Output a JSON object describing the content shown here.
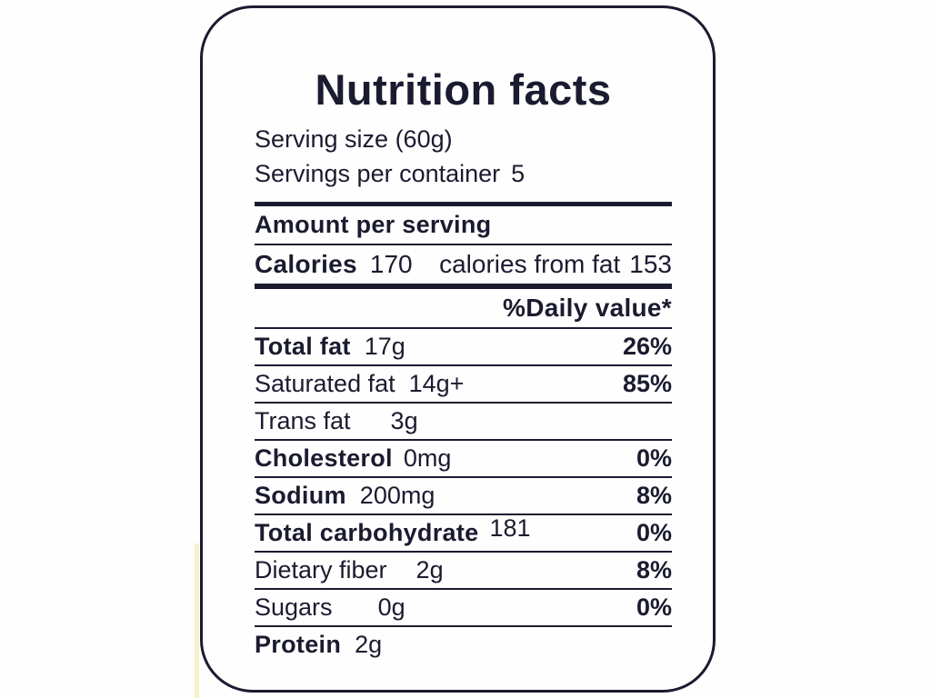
{
  "label": {
    "title": "Nutrition facts",
    "serving_size": "Serving size (60g)",
    "servings_per_container_label": "Servings per container",
    "servings_per_container_value": "5",
    "amount_per_serving": "Amount per serving",
    "calories_label": "Calories",
    "calories_value": "170",
    "calories_from_fat_label": "calories from fat",
    "calories_from_fat_value": "153",
    "daily_value_heading": "%Daily value*",
    "rows": [
      {
        "name": "Total fat",
        "amount": "17g",
        "dv": "26%"
      },
      {
        "name": "Saturated fat",
        "amount": "14g+",
        "dv": "85%"
      },
      {
        "name": "Trans fat",
        "amount": "3g",
        "dv": ""
      },
      {
        "name": "Cholesterol",
        "amount": "0mg",
        "dv": "0%"
      },
      {
        "name": "Sodium",
        "amount": "200mg",
        "dv": "8%"
      },
      {
        "name": "Total carbohydrate",
        "amount": "181",
        "dv": "0%"
      },
      {
        "name": "Dietary fiber",
        "amount": "2g",
        "dv": "8%"
      },
      {
        "name": "Sugars",
        "amount": "0g",
        "dv": "0%"
      },
      {
        "name": "Protein",
        "amount": "2g",
        "dv": ""
      }
    ],
    "colors": {
      "ink": "#1b1b30",
      "background": "#fefefe"
    }
  }
}
